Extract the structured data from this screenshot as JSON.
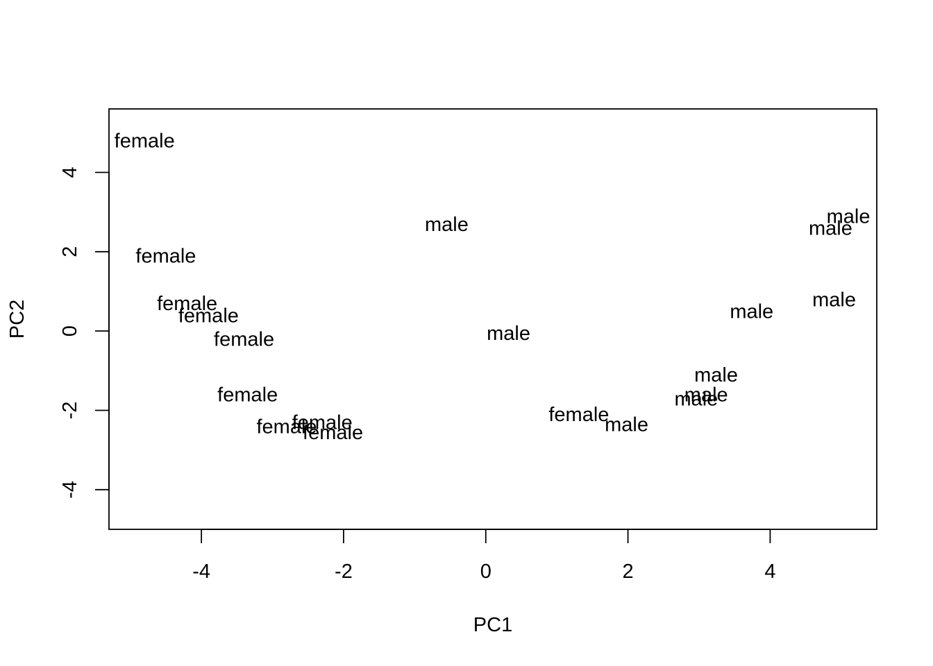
{
  "chart_data": {
    "type": "scatter",
    "title": "",
    "xlabel": "PC1",
    "ylabel": "PC2",
    "xlim": [
      -5.3,
      5.5
    ],
    "ylim": [
      -5.0,
      5.6
    ],
    "xticks": [
      "-4",
      "-2",
      "0",
      "2",
      "4"
    ],
    "yticks": [
      "-4",
      "-2",
      "0",
      "2",
      "4"
    ],
    "grid": false,
    "points": [
      {
        "x": -4.8,
        "y": 4.8,
        "label": "female"
      },
      {
        "x": -4.5,
        "y": 1.9,
        "label": "female"
      },
      {
        "x": -4.2,
        "y": 0.7,
        "label": "female"
      },
      {
        "x": -3.9,
        "y": 0.4,
        "label": "female"
      },
      {
        "x": -3.4,
        "y": -0.2,
        "label": "female"
      },
      {
        "x": -3.35,
        "y": -1.6,
        "label": "female"
      },
      {
        "x": -2.8,
        "y": -2.4,
        "label": "female"
      },
      {
        "x": -2.3,
        "y": -2.3,
        "label": "female"
      },
      {
        "x": -2.15,
        "y": -2.55,
        "label": "female"
      },
      {
        "x": -0.55,
        "y": 2.7,
        "label": "male"
      },
      {
        "x": 0.32,
        "y": -0.05,
        "label": "male"
      },
      {
        "x": 1.31,
        "y": -2.1,
        "label": "female"
      },
      {
        "x": 1.98,
        "y": -2.35,
        "label": "male"
      },
      {
        "x": 2.96,
        "y": -1.7,
        "label": "male"
      },
      {
        "x": 3.1,
        "y": -1.6,
        "label": "male"
      },
      {
        "x": 3.24,
        "y": -1.1,
        "label": "male"
      },
      {
        "x": 3.74,
        "y": 0.5,
        "label": "male"
      },
      {
        "x": 4.9,
        "y": 0.8,
        "label": "male"
      },
      {
        "x": 4.85,
        "y": 2.6,
        "label": "male"
      },
      {
        "x": 5.1,
        "y": 2.9,
        "label": "male"
      }
    ]
  }
}
